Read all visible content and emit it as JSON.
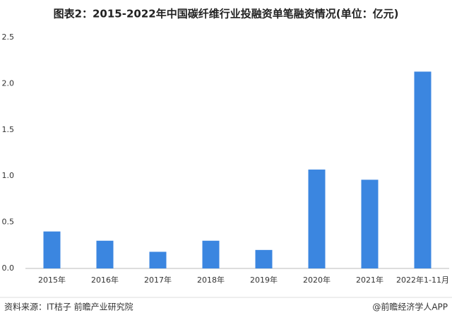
{
  "chart_data": {
    "type": "bar",
    "title": "图表2：2015-2022年中国碳纤维行业投融资单笔融资情况(单位：亿元)",
    "categories": [
      "2015年",
      "2016年",
      "2017年",
      "2018年",
      "2019年",
      "2020年",
      "2021年",
      "2022年1-11月"
    ],
    "values": [
      0.4,
      0.3,
      0.18,
      0.3,
      0.2,
      1.07,
      0.96,
      2.13
    ],
    "color": "#3b86e0",
    "ylim": [
      0,
      2.5
    ],
    "yticks": [
      {
        "value": 0,
        "label": "0.0"
      },
      0.5,
      {
        "value": 1,
        "label": "1.0"
      },
      1.5,
      {
        "value": 2,
        "label": "2.0"
      },
      2.5
    ],
    "grid": false,
    "source": "资料来源：IT桔子 前瞻产业研究院",
    "credit": "@前瞻经济学人APP"
  }
}
